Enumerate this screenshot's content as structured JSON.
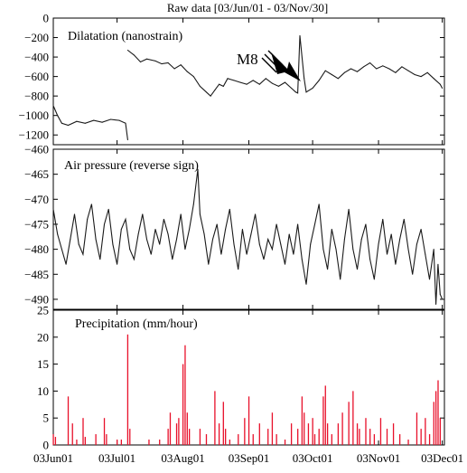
{
  "figure": {
    "title": "Raw data [03/Jun/01 - 03/Nov/30]"
  },
  "chart_data": [
    {
      "type": "line",
      "title": "Dilatation (nanostrain)",
      "ylim": [
        -1300,
        0
      ],
      "yticks": [
        0,
        -200,
        -400,
        -600,
        -800,
        -1000,
        -1200
      ],
      "annotation": {
        "label": "M8",
        "x": "03Sep24",
        "y": -650
      },
      "series": [
        {
          "values": [
            [
              "03Jun01",
              -900
            ],
            [
              "03Jun03",
              -1000
            ],
            [
              "03Jun05",
              -1080
            ],
            [
              "03Jun08",
              -1100
            ],
            [
              "03Jun12",
              -1060
            ],
            [
              "03Jun16",
              -1080
            ],
            [
              "03Jun20",
              -1050
            ],
            [
              "03Jun24",
              -1070
            ],
            [
              "03Jun28",
              -1040
            ],
            [
              "03Jul02",
              -1050
            ],
            [
              "03Jul05",
              -1080
            ],
            [
              "03Jul06",
              -1250
            ],
            [
              "03Jul06",
              -330
            ],
            [
              "03Jul09",
              -380
            ],
            [
              "03Jul12",
              -450
            ],
            [
              "03Jul15",
              -420
            ],
            [
              "03Jul19",
              -440
            ],
            [
              "03Jul22",
              -470
            ],
            [
              "03Jul25",
              -460
            ],
            [
              "03Jul28",
              -520
            ],
            [
              "03Jul31",
              -480
            ],
            [
              "03Aug03",
              -550
            ],
            [
              "03Aug06",
              -600
            ],
            [
              "03Aug09",
              -700
            ],
            [
              "03Aug12",
              -760
            ],
            [
              "03Aug14",
              -800
            ],
            [
              "03Aug16",
              -740
            ],
            [
              "03Aug18",
              -680
            ],
            [
              "03Aug20",
              -700
            ],
            [
              "03Aug22",
              -620
            ],
            [
              "03Aug25",
              -640
            ],
            [
              "03Aug28",
              -660
            ],
            [
              "03Aug31",
              -680
            ],
            [
              "03Sep03",
              -640
            ],
            [
              "03Sep06",
              -680
            ],
            [
              "03Sep09",
              -620
            ],
            [
              "03Sep12",
              -670
            ],
            [
              "03Sep15",
              -700
            ],
            [
              "03Sep18",
              -660
            ],
            [
              "03Sep21",
              -720
            ],
            [
              "03Sep23",
              -760
            ],
            [
              "03Sep24",
              -770
            ],
            [
              "03Sep25",
              -180
            ],
            [
              "03Sep27",
              -620
            ],
            [
              "03Sep28",
              -760
            ],
            [
              "03Oct01",
              -720
            ],
            [
              "03Oct04",
              -640
            ],
            [
              "03Oct07",
              -540
            ],
            [
              "03Oct10",
              -580
            ],
            [
              "03Oct13",
              -620
            ],
            [
              "03Oct16",
              -560
            ],
            [
              "03Oct19",
              -520
            ],
            [
              "03Oct22",
              -550
            ],
            [
              "03Oct25",
              -500
            ],
            [
              "03Oct28",
              -460
            ],
            [
              "03Oct31",
              -520
            ],
            [
              "03Nov03",
              -490
            ],
            [
              "03Nov06",
              -520
            ],
            [
              "03Nov09",
              -560
            ],
            [
              "03Nov12",
              -500
            ],
            [
              "03Nov15",
              -540
            ],
            [
              "03Nov18",
              -580
            ],
            [
              "03Nov21",
              -600
            ],
            [
              "03Nov24",
              -560
            ],
            [
              "03Nov27",
              -620
            ],
            [
              "03Nov30",
              -680
            ],
            [
              "03Dec01",
              -720
            ]
          ]
        }
      ]
    },
    {
      "type": "line",
      "title": "Air pressure (reverse sign)",
      "ylim": [
        -492,
        -460
      ],
      "yticks": [
        -460,
        -465,
        -470,
        -475,
        -480,
        -485,
        -490
      ],
      "series": [
        {
          "values": [
            [
              "03Jun01",
              -472
            ],
            [
              "03Jun03",
              -477
            ],
            [
              "03Jun05",
              -480
            ],
            [
              "03Jun07",
              -483
            ],
            [
              "03Jun09",
              -478
            ],
            [
              "03Jun11",
              -473
            ],
            [
              "03Jun13",
              -479
            ],
            [
              "03Jun15",
              -481
            ],
            [
              "03Jun17",
              -474
            ],
            [
              "03Jun19",
              -471
            ],
            [
              "03Jun21",
              -478
            ],
            [
              "03Jun23",
              -482
            ],
            [
              "03Jun25",
              -475
            ],
            [
              "03Jun27",
              -472
            ],
            [
              "03Jun29",
              -479
            ],
            [
              "03Jul01",
              -483
            ],
            [
              "03Jul03",
              -476
            ],
            [
              "03Jul05",
              -474
            ],
            [
              "03Jul07",
              -480
            ],
            [
              "03Jul09",
              -482
            ],
            [
              "03Jul11",
              -477
            ],
            [
              "03Jul13",
              -473
            ],
            [
              "03Jul15",
              -478
            ],
            [
              "03Jul17",
              -481
            ],
            [
              "03Jul19",
              -476
            ],
            [
              "03Jul21",
              -479
            ],
            [
              "03Jul23",
              -474
            ],
            [
              "03Jul25",
              -477
            ],
            [
              "03Jul27",
              -482
            ],
            [
              "03Jul29",
              -478
            ],
            [
              "03Jul31",
              -473
            ],
            [
              "03Aug02",
              -480
            ],
            [
              "03Aug04",
              -476
            ],
            [
              "03Aug06",
              -471
            ],
            [
              "03Aug08",
              -464
            ],
            [
              "03Aug09",
              -473
            ],
            [
              "03Aug11",
              -477
            ],
            [
              "03Aug13",
              -483
            ],
            [
              "03Aug15",
              -478
            ],
            [
              "03Aug17",
              -475
            ],
            [
              "03Aug19",
              -481
            ],
            [
              "03Aug21",
              -476
            ],
            [
              "03Aug23",
              -472
            ],
            [
              "03Aug25",
              -479
            ],
            [
              "03Aug27",
              -484
            ],
            [
              "03Aug29",
              -476
            ],
            [
              "03Aug31",
              -481
            ],
            [
              "03Sep02",
              -477
            ],
            [
              "03Sep04",
              -473
            ],
            [
              "03Sep06",
              -479
            ],
            [
              "03Sep08",
              -482
            ],
            [
              "03Sep10",
              -478
            ],
            [
              "03Sep12",
              -480
            ],
            [
              "03Sep14",
              -475
            ],
            [
              "03Sep16",
              -479
            ],
            [
              "03Sep18",
              -483
            ],
            [
              "03Sep20",
              -477
            ],
            [
              "03Sep22",
              -481
            ],
            [
              "03Sep24",
              -475
            ],
            [
              "03Sep26",
              -482
            ],
            [
              "03Sep28",
              -487
            ],
            [
              "03Sep30",
              -479
            ],
            [
              "03Oct02",
              -475
            ],
            [
              "03Oct04",
              -471
            ],
            [
              "03Oct06",
              -480
            ],
            [
              "03Oct08",
              -484
            ],
            [
              "03Oct10",
              -476
            ],
            [
              "03Oct12",
              -480
            ],
            [
              "03Oct14",
              -486
            ],
            [
              "03Oct16",
              -478
            ],
            [
              "03Oct18",
              -472
            ],
            [
              "03Oct20",
              -480
            ],
            [
              "03Oct22",
              -484
            ],
            [
              "03Oct24",
              -478
            ],
            [
              "03Oct26",
              -475
            ],
            [
              "03Oct28",
              -482
            ],
            [
              "03Oct30",
              -486
            ],
            [
              "03Nov01",
              -479
            ],
            [
              "03Nov03",
              -474
            ],
            [
              "03Nov05",
              -481
            ],
            [
              "03Nov07",
              -477
            ],
            [
              "03Nov09",
              -483
            ],
            [
              "03Nov11",
              -478
            ],
            [
              "03Nov13",
              -474
            ],
            [
              "03Nov15",
              -480
            ],
            [
              "03Nov17",
              -485
            ],
            [
              "03Nov19",
              -479
            ],
            [
              "03Nov21",
              -476
            ],
            [
              "03Nov23",
              -481
            ],
            [
              "03Nov25",
              -486
            ],
            [
              "03Nov27",
              -480
            ],
            [
              "03Nov28",
              -491
            ],
            [
              "03Nov29",
              -483
            ],
            [
              "03Nov30",
              -489
            ],
            [
              "03Dec01",
              -490
            ]
          ]
        }
      ]
    },
    {
      "type": "bar",
      "title": "Precipitation (mm/hour)",
      "ylim": [
        0,
        25
      ],
      "yticks": [
        0,
        5,
        10,
        15,
        20,
        25
      ],
      "series": [
        {
          "values": [
            [
              "03Jun01",
              2
            ],
            [
              "03Jun02",
              1.5
            ],
            [
              "03Jun08",
              9
            ],
            [
              "03Jun10",
              4
            ],
            [
              "03Jun12",
              1
            ],
            [
              "03Jun15",
              5
            ],
            [
              "03Jun16",
              1.5
            ],
            [
              "03Jun21",
              2
            ],
            [
              "03Jun25",
              5
            ],
            [
              "03Jun26",
              2
            ],
            [
              "03Jul01",
              1
            ],
            [
              "03Jul03",
              1
            ],
            [
              "03Jul06",
              20.5
            ],
            [
              "03Jul07",
              3
            ],
            [
              "03Jul16",
              1
            ],
            [
              "03Jul21",
              1
            ],
            [
              "03Jul25",
              3
            ],
            [
              "03Jul26",
              6
            ],
            [
              "03Jul29",
              4
            ],
            [
              "03Jul30",
              5
            ],
            [
              "03Aug01",
              15
            ],
            [
              "03Aug02",
              18.5
            ],
            [
              "03Aug03",
              6
            ],
            [
              "03Aug04",
              3
            ],
            [
              "03Aug09",
              3
            ],
            [
              "03Aug12",
              2
            ],
            [
              "03Aug16",
              10
            ],
            [
              "03Aug18",
              4
            ],
            [
              "03Aug20",
              8
            ],
            [
              "03Aug21",
              3
            ],
            [
              "03Aug23",
              1
            ],
            [
              "03Aug27",
              2
            ],
            [
              "03Aug30",
              5
            ],
            [
              "03Sep01",
              9
            ],
            [
              "03Sep03",
              2
            ],
            [
              "03Sep06",
              4
            ],
            [
              "03Sep10",
              3
            ],
            [
              "03Sep12",
              6
            ],
            [
              "03Sep14",
              2
            ],
            [
              "03Sep18",
              1
            ],
            [
              "03Sep21",
              4
            ],
            [
              "03Sep24",
              3
            ],
            [
              "03Sep26",
              9
            ],
            [
              "03Sep27",
              6
            ],
            [
              "03Sep29",
              4
            ],
            [
              "03Oct01",
              5
            ],
            [
              "03Oct02",
              2
            ],
            [
              "03Oct04",
              3
            ],
            [
              "03Oct06",
              9
            ],
            [
              "03Oct07",
              11
            ],
            [
              "03Oct08",
              4
            ],
            [
              "03Oct10",
              2
            ],
            [
              "03Oct13",
              4
            ],
            [
              "03Oct15",
              6
            ],
            [
              "03Oct18",
              8
            ],
            [
              "03Oct20",
              10
            ],
            [
              "03Oct22",
              4
            ],
            [
              "03Oct23",
              3
            ],
            [
              "03Oct26",
              5
            ],
            [
              "03Oct28",
              3
            ],
            [
              "03Oct30",
              2
            ],
            [
              "03Nov02",
              5
            ],
            [
              "03Nov05",
              3
            ],
            [
              "03Nov08",
              4
            ],
            [
              "03Nov11",
              2
            ],
            [
              "03Nov15",
              1
            ],
            [
              "03Nov19",
              6
            ],
            [
              "03Nov21",
              3
            ],
            [
              "03Nov23",
              5
            ],
            [
              "03Nov25",
              2
            ],
            [
              "03Nov27",
              8
            ],
            [
              "03Nov28",
              10
            ],
            [
              "03Nov29",
              12
            ],
            [
              "03Nov30",
              5
            ]
          ]
        }
      ]
    }
  ],
  "x_axis": {
    "start": "03Jun01",
    "end": "03Dec02",
    "tick_labels": [
      "03Jun01",
      "03Jul01",
      "03Aug01",
      "03Sep01",
      "03Oct01",
      "03Nov01",
      "03Dec01"
    ]
  },
  "colors": {
    "line": "#1a1a1a",
    "bar": "#e8102a",
    "axis": "#000000"
  }
}
